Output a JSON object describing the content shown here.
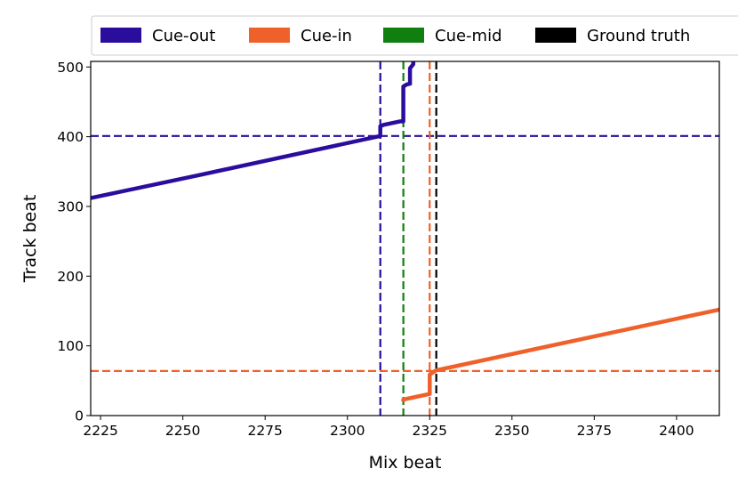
{
  "chart_data": {
    "type": "line",
    "xlabel": "Mix beat",
    "ylabel": "Track beat",
    "xlim": [
      2222,
      2413
    ],
    "ylim": [
      0,
      508
    ],
    "x_ticks": [
      2225,
      2250,
      2275,
      2300,
      2325,
      2350,
      2375,
      2400
    ],
    "y_ticks": [
      0,
      100,
      200,
      300,
      400,
      500
    ],
    "grid": false,
    "legend": {
      "placement": "top",
      "entries": [
        {
          "label": "Cue-out",
          "color": "#2b0d9e"
        },
        {
          "label": "Cue-in",
          "color": "#f0602a"
        },
        {
          "label": "Cue-mid",
          "color": "#107f10"
        },
        {
          "label": "Ground truth",
          "color": "#000000"
        }
      ]
    },
    "series": [
      {
        "name": "Cue-out",
        "color": "#2b0d9e",
        "points": [
          [
            2222,
            312
          ],
          [
            2225,
            315
          ],
          [
            2256,
            346
          ],
          [
            2310,
            401
          ],
          [
            2310,
            415
          ],
          [
            2311,
            417
          ],
          [
            2316,
            422
          ],
          [
            2317,
            422
          ],
          [
            2317,
            472
          ],
          [
            2318,
            475
          ],
          [
            2319,
            476
          ],
          [
            2319,
            498
          ],
          [
            2320,
            504
          ],
          [
            2320,
            508
          ]
        ]
      },
      {
        "name": "Cue-in",
        "color": "#f0602a",
        "points": [
          [
            2317,
            20
          ],
          [
            2317,
            23
          ],
          [
            2325,
            31
          ],
          [
            2325,
            59
          ],
          [
            2327,
            65
          ],
          [
            2413,
            152
          ]
        ]
      }
    ],
    "reference_lines": [
      {
        "series": "Cue-out",
        "orientation": "vertical",
        "value": 2310,
        "color": "#2b0d9e"
      },
      {
        "series": "Cue-out",
        "orientation": "horizontal",
        "value": 401,
        "color": "#2b0d9e"
      },
      {
        "series": "Cue-in",
        "orientation": "vertical",
        "value": 2325,
        "color": "#f0602a"
      },
      {
        "series": "Cue-in",
        "orientation": "horizontal",
        "value": 64,
        "color": "#f0602a"
      },
      {
        "series": "Cue-mid",
        "orientation": "vertical",
        "value": 2317,
        "color": "#107f10"
      },
      {
        "series": "Ground truth",
        "orientation": "vertical",
        "value": 2327,
        "color": "#000000"
      }
    ]
  }
}
